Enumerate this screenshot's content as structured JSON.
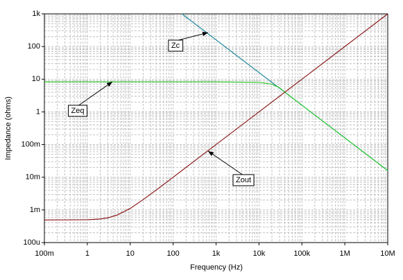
{
  "chart_data": {
    "type": "line",
    "xlabel": "Frequency (Hz)",
    "ylabel": "Impedance (ohms)",
    "xscale": "log",
    "yscale": "log",
    "grid": true,
    "xlim": [
      0.1,
      10000000
    ],
    "ylim": [
      0.0001,
      1000
    ],
    "xticks": [
      {
        "value": 0.1,
        "label": "100m"
      },
      1,
      10,
      100,
      {
        "value": 1000,
        "label": "1k"
      },
      {
        "value": 10000,
        "label": "10k"
      },
      {
        "value": 100000,
        "label": "100k"
      },
      {
        "value": 1000000,
        "label": "1M"
      },
      {
        "value": 10000000,
        "label": "10M"
      }
    ],
    "yticks": [
      {
        "value": 0.0001,
        "label": "100u"
      },
      {
        "value": 0.001,
        "label": "1m"
      },
      {
        "value": 0.01,
        "label": "10m"
      },
      {
        "value": 0.1,
        "label": "100m"
      },
      1,
      10,
      100,
      {
        "value": 1000,
        "label": "1k"
      }
    ],
    "series": [
      {
        "name": "Zc",
        "color": "#1f8a9e",
        "x": [
          160,
          10000000
        ],
        "values": [
          1000,
          0.016
        ]
      },
      {
        "name": "Zeq",
        "color": "#33cc33",
        "x": [
          0.1,
          1000,
          10000,
          20000,
          30000,
          50000,
          100000,
          1000000,
          10000000
        ],
        "values": [
          8.3,
          8.3,
          8.0,
          7,
          5.5,
          3.2,
          1.6,
          0.16,
          0.016
        ]
      },
      {
        "name": "Zout",
        "color": "#8b1a1a",
        "x": [
          0.1,
          1,
          2,
          3,
          5,
          10,
          20,
          50,
          100,
          1000,
          10000,
          100000,
          1000000,
          10000000
        ],
        "values": [
          0.00049,
          0.0005,
          0.00053,
          0.00057,
          0.0007,
          0.00111,
          0.00206,
          0.005,
          0.01,
          0.1,
          1,
          10,
          100,
          1000
        ]
      }
    ],
    "annotations": [
      {
        "text": "Zc"
      },
      {
        "text": "Zeq"
      },
      {
        "text": "Zout"
      }
    ]
  }
}
